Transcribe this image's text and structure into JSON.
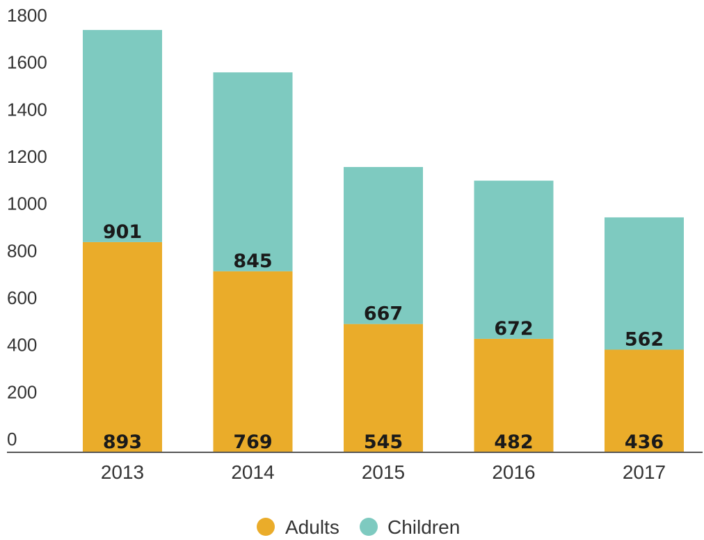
{
  "chart_data": {
    "type": "bar",
    "stacked": true,
    "categories": [
      "2013",
      "2014",
      "2015",
      "2016",
      "2017"
    ],
    "series": [
      {
        "name": "Adults",
        "values": [
          893,
          769,
          545,
          482,
          436
        ],
        "color": "#EAAC2A"
      },
      {
        "name": "Children",
        "values": [
          901,
          845,
          667,
          672,
          562
        ],
        "color": "#7ECAC0"
      }
    ],
    "ylim": [
      0,
      1800
    ],
    "yticks": [
      "0",
      "200",
      "400",
      "600",
      "800",
      "1000",
      "1200",
      "1400",
      "1600",
      "1800"
    ],
    "grid": false,
    "legend_position": "bottom",
    "axis_color": "#555555"
  }
}
